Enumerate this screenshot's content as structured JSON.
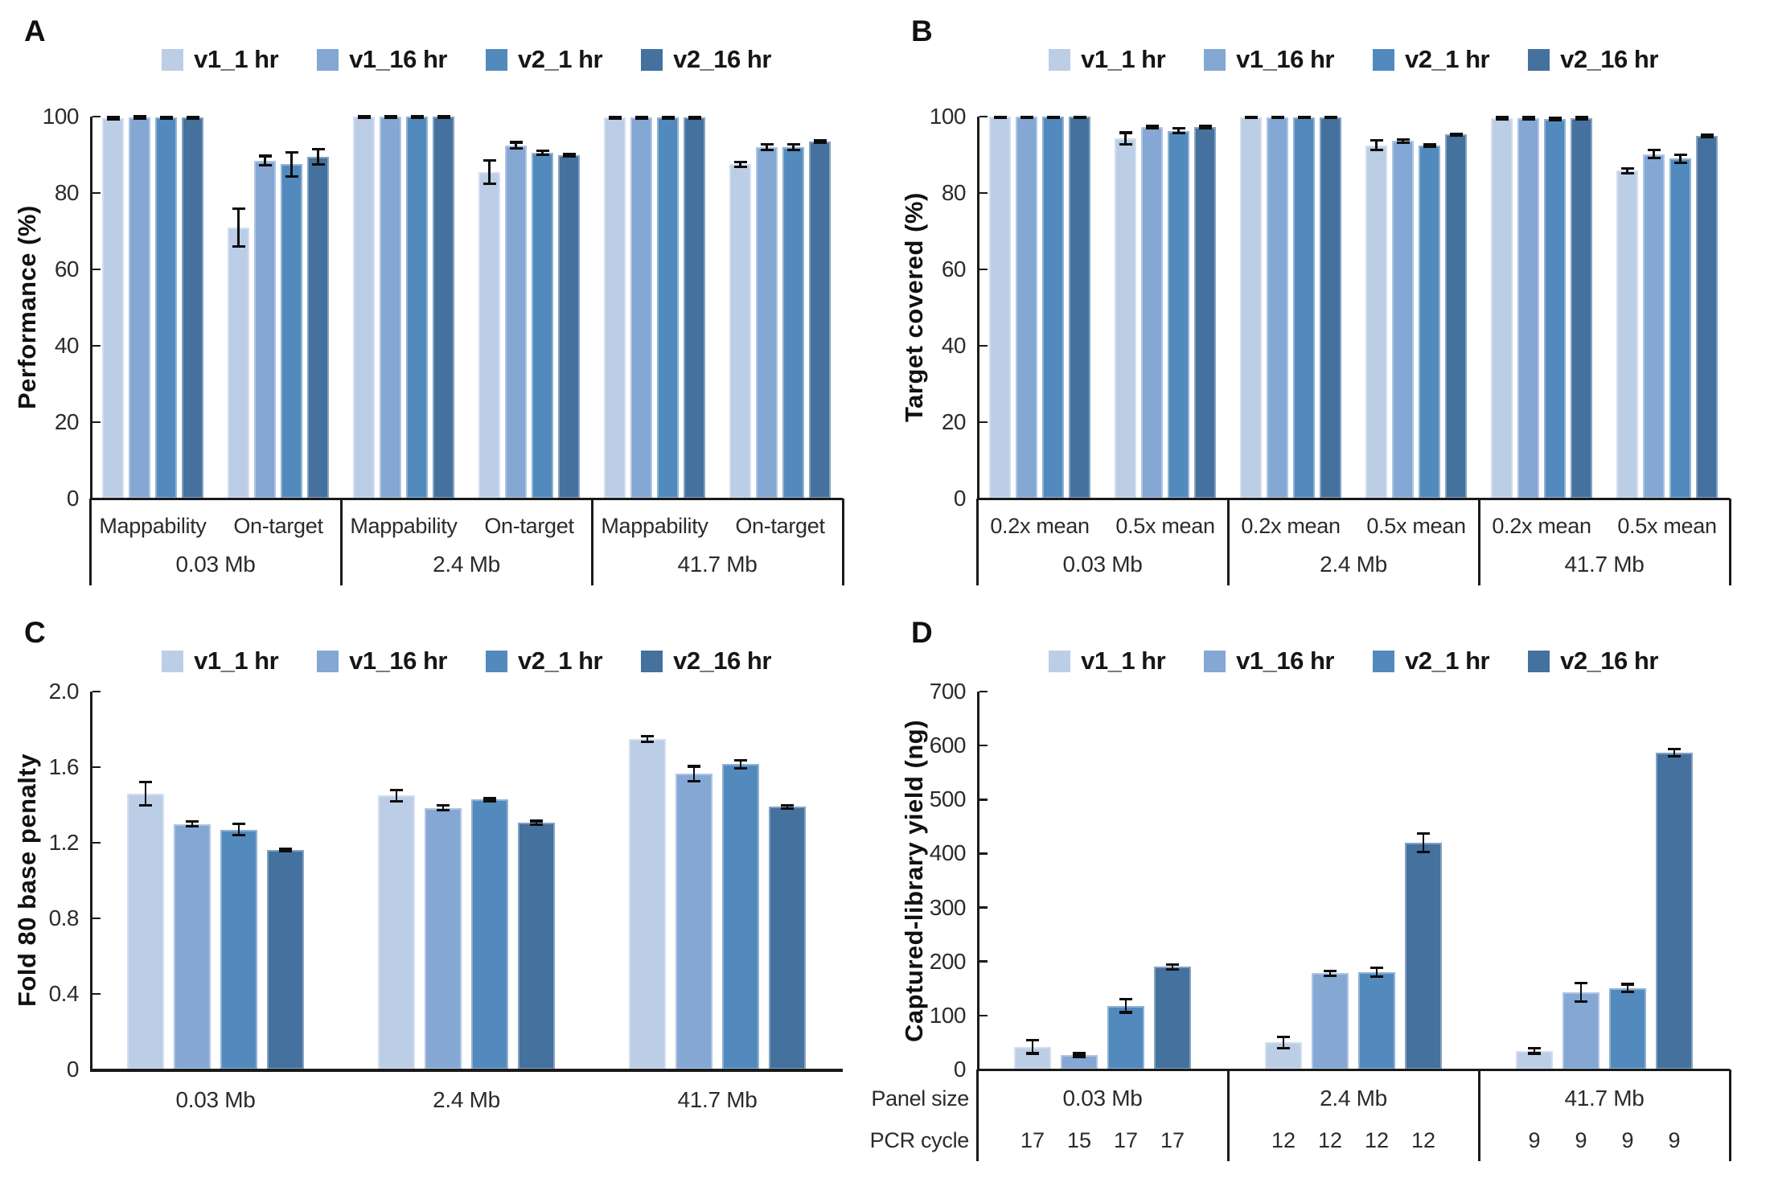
{
  "legend": [
    {
      "label": "v1_1 hr",
      "color": "#bccde6"
    },
    {
      "label": "v1_16 hr",
      "color": "#84a7d4"
    },
    {
      "label": "v2_1 hr",
      "color": "#538abd"
    },
    {
      "label": "v2_16 hr",
      "color": "#44719e"
    }
  ],
  "chart_data": [
    {
      "type": "bar",
      "letter": "A",
      "ylabel": "Performance (%)",
      "ylim": [
        0,
        100
      ],
      "yticks": [
        "0",
        "20",
        "40",
        "60",
        "80",
        "100"
      ],
      "legend_position": "top",
      "grid": false,
      "categories": [
        "0.03 Mb",
        "2.4 Mb",
        "41.7 Mb"
      ],
      "subcategories": [
        "Mappability",
        "On-target"
      ],
      "series_names": [
        "v1_1 hr",
        "v1_16 hr",
        "v2_1 hr",
        "v2_16 hr"
      ],
      "sections": [
        {
          "label": "0.03 Mb",
          "groups": [
            {
              "label": "Mappability",
              "values": [
                99.5,
                99.8,
                99.7,
                99.8
              ],
              "errors": [
                0.3,
                0.3,
                0.2,
                0.2
              ]
            },
            {
              "label": "On-target",
              "values": [
                71,
                88.5,
                87.5,
                89.5
              ],
              "errors": [
                5,
                1.2,
                3.2,
                2
              ]
            }
          ]
        },
        {
          "label": "2.4 Mb",
          "groups": [
            {
              "label": "Mappability",
              "values": [
                99.9,
                99.9,
                99.9,
                99.9
              ],
              "errors": [
                0.15,
                0.15,
                0.15,
                0.15
              ]
            },
            {
              "label": "On-target",
              "values": [
                85.5,
                92.5,
                90.5,
                90
              ],
              "errors": [
                3,
                0.8,
                0.5,
                0.3
              ]
            }
          ]
        },
        {
          "label": "41.7 Mb",
          "groups": [
            {
              "label": "Mappability",
              "values": [
                99.8,
                99.8,
                99.8,
                99.8
              ],
              "errors": [
                0.2,
                0.2,
                0.2,
                0.2
              ]
            },
            {
              "label": "On-target",
              "values": [
                87.5,
                92,
                92,
                93.5
              ],
              "errors": [
                0.7,
                0.8,
                0.8,
                0.3
              ]
            }
          ]
        }
      ]
    },
    {
      "type": "bar",
      "letter": "B",
      "ylabel": "Target covered (%)",
      "ylim": [
        0,
        100
      ],
      "yticks": [
        "0",
        "20",
        "40",
        "60",
        "80",
        "100"
      ],
      "legend_position": "top",
      "grid": false,
      "categories": [
        "0.03 Mb",
        "2.4 Mb",
        "41.7 Mb"
      ],
      "subcategories": [
        "0.2x mean",
        "0.5x mean"
      ],
      "series_names": [
        "v1_1 hr",
        "v1_16 hr",
        "v2_1 hr",
        "v2_16 hr"
      ],
      "sections": [
        {
          "label": "0.03 Mb",
          "groups": [
            {
              "label": "0.2x mean",
              "values": [
                99.9,
                99.9,
                99.9,
                99.9
              ],
              "errors": [
                0.1,
                0.1,
                0.1,
                0.1
              ]
            },
            {
              "label": "0.5x mean",
              "values": [
                94.3,
                97.3,
                96.3,
                97.3
              ],
              "errors": [
                1.5,
                0.3,
                0.6,
                0.3
              ]
            }
          ]
        },
        {
          "label": "2.4 Mb",
          "groups": [
            {
              "label": "0.2x mean",
              "values": [
                99.8,
                99.8,
                99.8,
                99.8
              ],
              "errors": [
                0.1,
                0.1,
                0.1,
                0.1
              ]
            },
            {
              "label": "0.5x mean",
              "values": [
                92.5,
                93.6,
                92.4,
                95.3
              ],
              "errors": [
                1.3,
                0.4,
                0.3,
                0.2
              ]
            }
          ]
        },
        {
          "label": "41.7 Mb",
          "groups": [
            {
              "label": "0.2x mean",
              "values": [
                99.5,
                99.6,
                99.4,
                99.5
              ],
              "errors": [
                0.3,
                0.3,
                0.3,
                0.3
              ]
            },
            {
              "label": "0.5x mean",
              "values": [
                85.8,
                90.2,
                89,
                95
              ],
              "errors": [
                0.7,
                1,
                1,
                0.3
              ]
            }
          ]
        }
      ]
    },
    {
      "type": "bar",
      "letter": "C",
      "ylabel": "Fold 80 base penalty",
      "ylim": [
        0,
        2.0
      ],
      "yticks": [
        "0",
        "0.4",
        "0.8",
        "1.2",
        "1.6",
        "2.0"
      ],
      "legend_position": "top",
      "grid": false,
      "categories": [
        "0.03 Mb",
        "2.4 Mb",
        "41.7 Mb"
      ],
      "series_names": [
        "v1_1 hr",
        "v1_16 hr",
        "v2_1 hr",
        "v2_16 hr"
      ],
      "sections": [
        {
          "label": "0.03 Mb",
          "groups": [
            {
              "label": "",
              "values": [
                1.46,
                1.3,
                1.27,
                1.16
              ],
              "errors": [
                0.06,
                0.012,
                0.03,
                0.006
              ]
            }
          ]
        },
        {
          "label": "2.4 Mb",
          "groups": [
            {
              "label": "",
              "values": [
                1.45,
                1.385,
                1.43,
                1.305
              ],
              "errors": [
                0.03,
                0.012,
                0.008,
                0.01
              ]
            }
          ]
        },
        {
          "label": "41.7 Mb",
          "groups": [
            {
              "label": "",
              "values": [
                1.75,
                1.565,
                1.615,
                1.39
              ],
              "errors": [
                0.015,
                0.04,
                0.02,
                0.008
              ]
            }
          ]
        }
      ]
    },
    {
      "type": "bar",
      "letter": "D",
      "ylabel": "Captured-library yield (ng)",
      "ylim": [
        0,
        700
      ],
      "yticks": [
        "0",
        "100",
        "200",
        "300",
        "400",
        "500",
        "600",
        "700"
      ],
      "legend_position": "top",
      "grid": false,
      "categories": [
        "0.03 Mb",
        "2.4 Mb",
        "41.7 Mb"
      ],
      "series_names": [
        "v1_1 hr",
        "v1_16 hr",
        "v2_1 hr",
        "v2_16 hr"
      ],
      "row_labels": [
        "Panel size",
        "PCR cycle"
      ],
      "sections": [
        {
          "label": "0.03 Mb",
          "pcr_cycles": [
            "17",
            "15",
            "17",
            "17"
          ],
          "groups": [
            {
              "label": "",
              "values": [
                42,
                27,
                118,
                190
              ],
              "errors": [
                12,
                3,
                12,
                5
              ]
            }
          ]
        },
        {
          "label": "2.4 Mb",
          "pcr_cycles": [
            "12",
            "12",
            "12",
            "12"
          ],
          "groups": [
            {
              "label": "",
              "values": [
                50,
                178,
                180,
                420
              ],
              "errors": [
                10,
                4,
                8,
                17
              ]
            }
          ]
        },
        {
          "label": "41.7 Mb",
          "pcr_cycles": [
            "9",
            "9",
            "9",
            "9"
          ],
          "groups": [
            {
              "label": "",
              "values": [
                35,
                143,
                151,
                587
              ],
              "errors": [
                5,
                17,
                7,
                7
              ]
            }
          ]
        }
      ]
    }
  ]
}
